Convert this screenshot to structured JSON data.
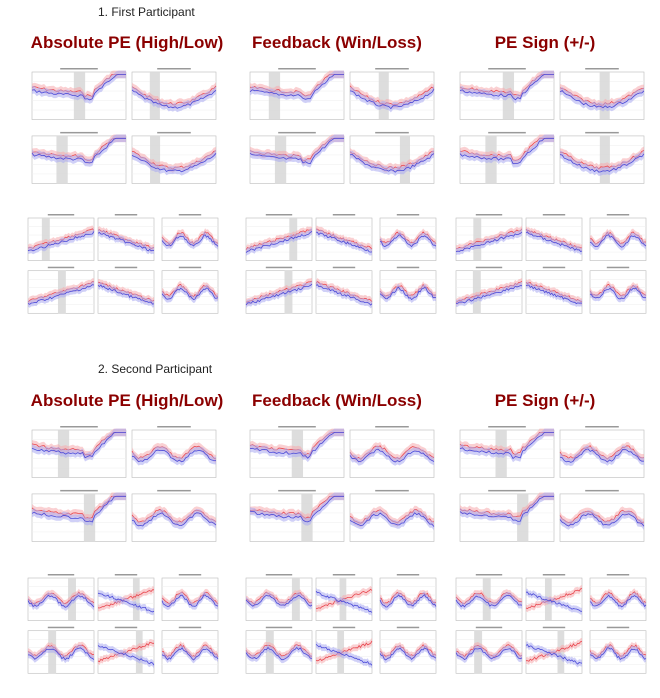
{
  "sections": [
    {
      "heading": "1.   First Participant",
      "columns": [
        {
          "title": "Absolute PE (High/Low)"
        },
        {
          "title": "Feedback (Win/Loss)"
        },
        {
          "title": "PE Sign (+/-)"
        }
      ]
    },
    {
      "heading": "2.   Second Participant",
      "columns": [
        {
          "title": "Absolute PE (High/Low)"
        },
        {
          "title": "Feedback (Win/Loss)"
        },
        {
          "title": "PE Sign (+/-)"
        }
      ]
    }
  ],
  "colors": {
    "title": "#8b0000",
    "series_a": "#e8474f",
    "series_b": "#4a4ad8",
    "band_a": "#f6a9ad",
    "band_b": "#a9a9f0",
    "shade": "#d9d9d9"
  }
}
